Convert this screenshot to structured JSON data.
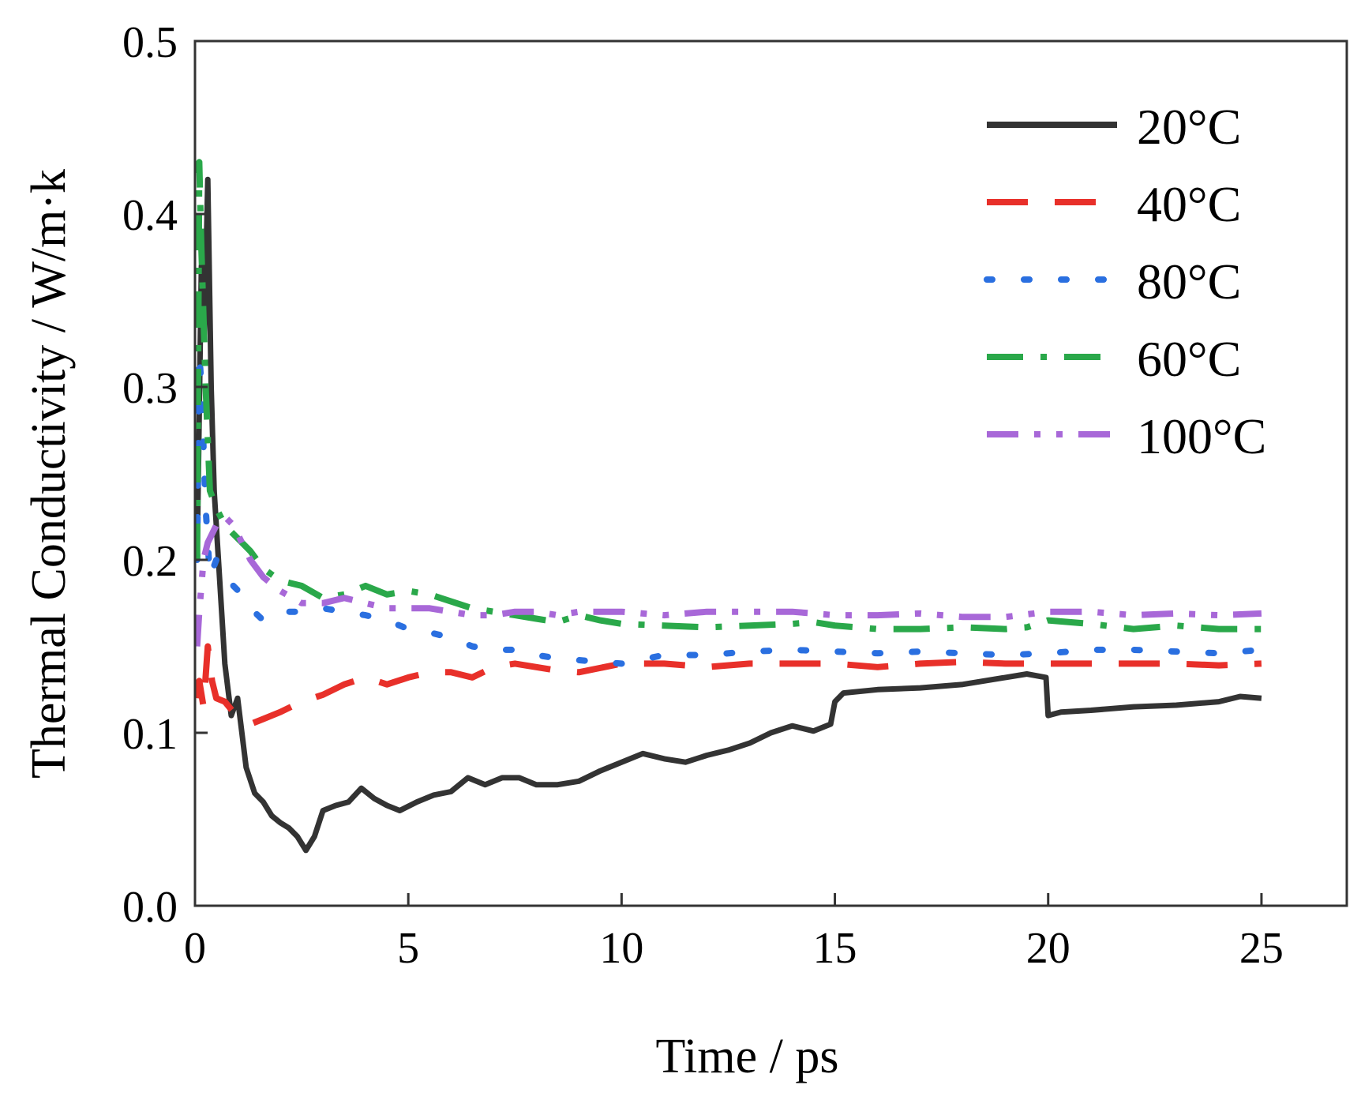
{
  "chart_data": {
    "type": "line",
    "title": "",
    "xlabel": "Time / ps",
    "ylabel": "Thermal Conductivity / W/m·k",
    "xlim": [
      0,
      27
    ],
    "ylim": [
      0,
      0.5
    ],
    "xticks": [
      0,
      5,
      10,
      15,
      20,
      25
    ],
    "xtick_labels": [
      "0",
      "5",
      "10",
      "15",
      "20",
      "25"
    ],
    "yticks": [
      0,
      0.1,
      0.2,
      0.3,
      0.4,
      0.5
    ],
    "ytick_labels": [
      "0.0",
      "0.1",
      "0.2",
      "0.3",
      "0.4",
      "0.5"
    ],
    "grid": false,
    "legend_position": "top-right",
    "series": [
      {
        "name": "20°C",
        "color": "#333333",
        "dash": "solid",
        "x": [
          0.05,
          0.15,
          0.22,
          0.3,
          0.38,
          0.45,
          0.55,
          0.7,
          0.85,
          1.0,
          1.1,
          1.2,
          1.4,
          1.6,
          1.8,
          2.0,
          2.2,
          2.4,
          2.6,
          2.8,
          3.0,
          3.3,
          3.6,
          3.9,
          4.2,
          4.5,
          4.8,
          5.2,
          5.6,
          6.0,
          6.4,
          6.8,
          7.2,
          7.6,
          8.0,
          8.5,
          9.0,
          9.5,
          10.0,
          10.5,
          11.0,
          11.5,
          12.0,
          12.5,
          13.0,
          13.5,
          14.0,
          14.5,
          14.9,
          15.0,
          15.2,
          16.0,
          17.0,
          18.0,
          19.0,
          19.5,
          19.95,
          20.0,
          20.3,
          21.0,
          22.0,
          23.0,
          24.0,
          24.5,
          25.0
        ],
        "y": [
          0.2,
          0.37,
          0.33,
          0.42,
          0.3,
          0.24,
          0.2,
          0.14,
          0.11,
          0.12,
          0.1,
          0.08,
          0.065,
          0.06,
          0.052,
          0.048,
          0.045,
          0.04,
          0.032,
          0.04,
          0.055,
          0.058,
          0.06,
          0.068,
          0.062,
          0.058,
          0.055,
          0.06,
          0.064,
          0.066,
          0.074,
          0.07,
          0.074,
          0.074,
          0.07,
          0.07,
          0.072,
          0.078,
          0.083,
          0.088,
          0.085,
          0.083,
          0.087,
          0.09,
          0.094,
          0.1,
          0.104,
          0.101,
          0.105,
          0.118,
          0.123,
          0.125,
          0.126,
          0.128,
          0.132,
          0.134,
          0.132,
          0.11,
          0.112,
          0.113,
          0.115,
          0.116,
          0.118,
          0.121,
          0.12
        ]
      },
      {
        "name": "40°C",
        "color": "#e8302a",
        "dash": "long-dash",
        "x": [
          0.05,
          0.1,
          0.2,
          0.3,
          0.4,
          0.5,
          0.7,
          0.9,
          1.1,
          1.3,
          1.6,
          2.0,
          2.5,
          3.0,
          3.5,
          4.0,
          4.5,
          5.0,
          5.5,
          6.0,
          6.5,
          7.0,
          7.5,
          8.0,
          8.5,
          9.0,
          10.0,
          11.0,
          12.0,
          13.0,
          14.0,
          15.0,
          16.0,
          17.0,
          18.0,
          19.0,
          20.0,
          21.0,
          22.0,
          23.0,
          24.0,
          25.0
        ],
        "y": [
          0.12,
          0.13,
          0.115,
          0.15,
          0.13,
          0.12,
          0.118,
          0.112,
          0.108,
          0.105,
          0.108,
          0.112,
          0.118,
          0.122,
          0.128,
          0.132,
          0.128,
          0.132,
          0.135,
          0.135,
          0.132,
          0.138,
          0.14,
          0.138,
          0.136,
          0.135,
          0.14,
          0.14,
          0.138,
          0.14,
          0.14,
          0.14,
          0.138,
          0.14,
          0.141,
          0.14,
          0.14,
          0.14,
          0.14,
          0.14,
          0.139,
          0.14
        ]
      },
      {
        "name": "80°C",
        "color": "#2a6fe0",
        "dash": "dotted",
        "x": [
          0.05,
          0.1,
          0.15,
          0.25,
          0.35,
          0.5,
          0.7,
          0.9,
          1.1,
          1.3,
          1.6,
          2.0,
          2.5,
          3.0,
          3.5,
          4.0,
          4.5,
          5.0,
          5.5,
          6.0,
          6.5,
          7.0,
          7.5,
          8.0,
          8.5,
          9.0,
          9.5,
          10.0,
          11.0,
          12.0,
          13.0,
          14.0,
          15.0,
          16.0,
          17.0,
          18.0,
          19.0,
          20.0,
          21.0,
          22.0,
          23.0,
          24.0,
          25.0
        ],
        "y": [
          0.2,
          0.32,
          0.3,
          0.23,
          0.19,
          0.2,
          0.19,
          0.185,
          0.18,
          0.172,
          0.165,
          0.17,
          0.17,
          0.172,
          0.17,
          0.168,
          0.165,
          0.16,
          0.158,
          0.155,
          0.15,
          0.148,
          0.148,
          0.145,
          0.143,
          0.142,
          0.141,
          0.14,
          0.145,
          0.145,
          0.147,
          0.148,
          0.147,
          0.146,
          0.147,
          0.146,
          0.145,
          0.146,
          0.148,
          0.148,
          0.147,
          0.146,
          0.148
        ]
      },
      {
        "name": "60°C",
        "color": "#2aa84a",
        "dash": "dash-dot",
        "x": [
          0.05,
          0.1,
          0.15,
          0.25,
          0.35,
          0.5,
          0.7,
          0.9,
          1.1,
          1.3,
          1.6,
          2.0,
          2.5,
          3.0,
          3.5,
          4.0,
          4.5,
          5.0,
          5.5,
          6.0,
          6.5,
          7.0,
          7.5,
          8.0,
          8.5,
          9.0,
          9.5,
          10.0,
          11.0,
          12.0,
          13.0,
          14.0,
          14.5,
          15.0,
          16.0,
          17.0,
          18.0,
          19.0,
          19.5,
          20.0,
          21.0,
          22.0,
          23.0,
          24.0,
          25.0
        ],
        "y": [
          0.2,
          0.43,
          0.38,
          0.3,
          0.24,
          0.23,
          0.22,
          0.215,
          0.21,
          0.205,
          0.195,
          0.188,
          0.185,
          0.178,
          0.18,
          0.185,
          0.18,
          0.182,
          0.18,
          0.176,
          0.172,
          0.17,
          0.168,
          0.166,
          0.164,
          0.168,
          0.165,
          0.163,
          0.162,
          0.161,
          0.162,
          0.163,
          0.164,
          0.162,
          0.16,
          0.16,
          0.161,
          0.16,
          0.161,
          0.165,
          0.163,
          0.16,
          0.162,
          0.16,
          0.16
        ]
      },
      {
        "name": "100°C",
        "color": "#a868d8",
        "dash": "dash-dot-dot",
        "x": [
          0.05,
          0.1,
          0.2,
          0.3,
          0.4,
          0.5,
          0.7,
          0.9,
          1.1,
          1.3,
          1.6,
          2.0,
          2.5,
          3.0,
          3.5,
          4.0,
          4.5,
          5.0,
          5.5,
          6.0,
          6.5,
          7.0,
          7.5,
          8.0,
          8.5,
          9.0,
          10.0,
          11.0,
          12.0,
          13.0,
          14.0,
          15.0,
          16.0,
          17.0,
          18.0,
          19.0,
          20.0,
          21.0,
          22.0,
          23.0,
          24.0,
          25.0
        ],
        "y": [
          0.15,
          0.17,
          0.2,
          0.21,
          0.215,
          0.22,
          0.225,
          0.22,
          0.21,
          0.2,
          0.19,
          0.182,
          0.175,
          0.175,
          0.178,
          0.175,
          0.172,
          0.172,
          0.172,
          0.17,
          0.168,
          0.168,
          0.17,
          0.17,
          0.168,
          0.17,
          0.17,
          0.168,
          0.17,
          0.17,
          0.17,
          0.168,
          0.168,
          0.169,
          0.167,
          0.167,
          0.17,
          0.17,
          0.168,
          0.169,
          0.168,
          0.169
        ]
      }
    ]
  }
}
